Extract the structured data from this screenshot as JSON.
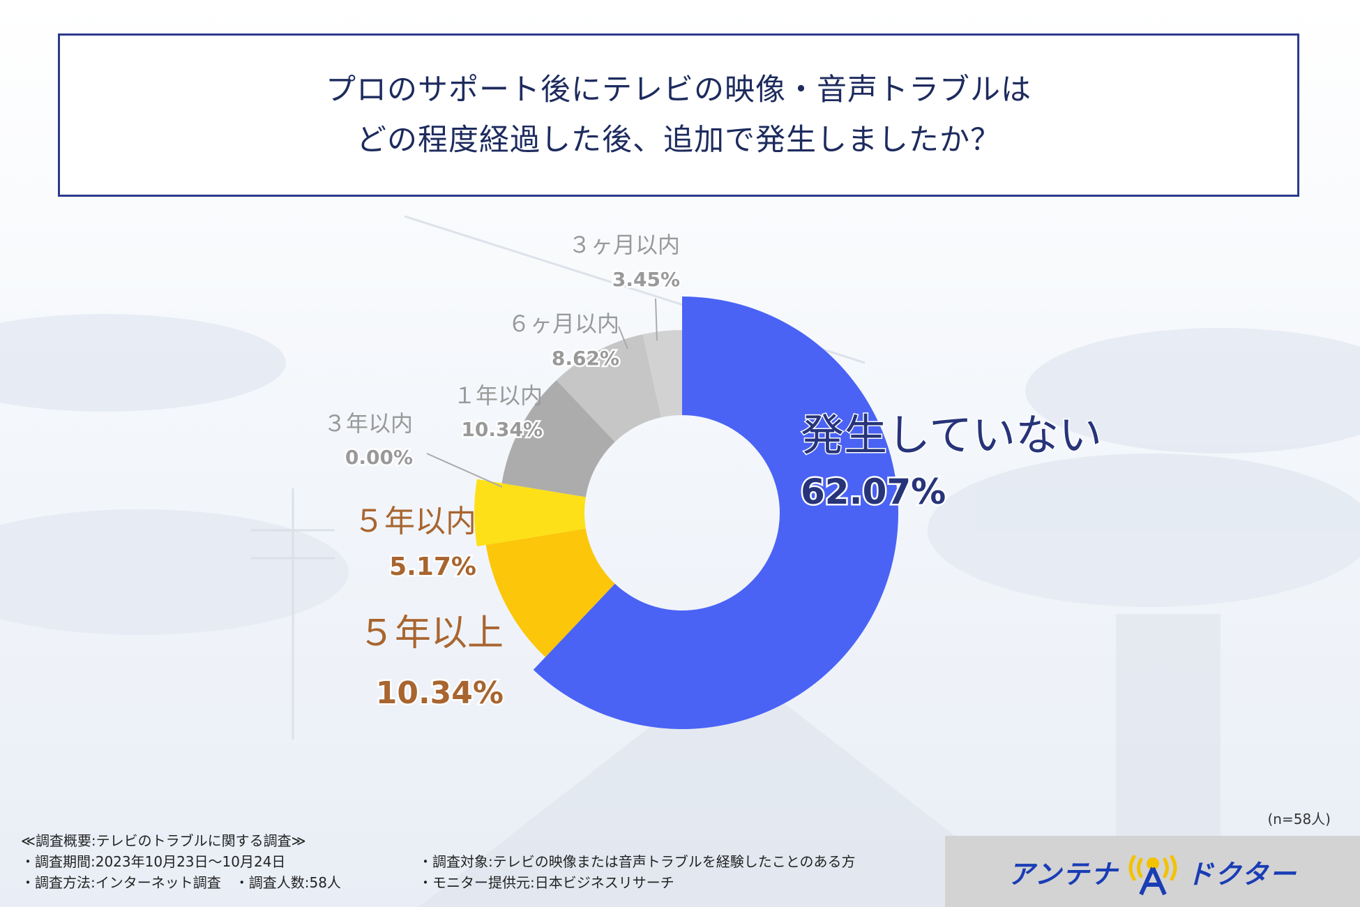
{
  "title": {
    "line1": "プロのサポート後にテレビの映像・音声トラブルは",
    "line2": "どの程度経過した後、追加で発生しましたか？"
  },
  "chart_data": {
    "type": "pie",
    "donut": true,
    "title": "プロのサポート後にテレビの映像・音声トラブルはどの程度経過した後、追加で発生しましたか？",
    "slices": [
      {
        "label": "発生していない",
        "value": 62.07,
        "value_label": "62.07%",
        "color": "#4a63f5",
        "label_color": "#27347a"
      },
      {
        "label": "５年以上",
        "value": 10.34,
        "value_label": "10.34%",
        "color": "#fcc60a",
        "label_color": "#a8652f"
      },
      {
        "label": "５年以内",
        "value": 5.17,
        "value_label": "5.17%",
        "color": "#fde018",
        "label_color": "#a8652f"
      },
      {
        "label": "３年以内",
        "value": 0.0,
        "value_label": "0.00%",
        "color": "#b9b9b9",
        "label_color": "#999999"
      },
      {
        "label": "１年以内",
        "value": 10.34,
        "value_label": "10.34%",
        "color": "#acacac",
        "label_color": "#999999"
      },
      {
        "label": "６ヶ月以内",
        "value": 8.62,
        "value_label": "8.62%",
        "color": "#c6c6c6",
        "label_color": "#999999"
      },
      {
        "label": "３ヶ月以内",
        "value": 3.45,
        "value_label": "3.45%",
        "color": "#d2d2d2",
        "label_color": "#999999"
      }
    ]
  },
  "sample_note": "(n=58人)",
  "footer": {
    "heading": "≪調査概要:テレビのトラブルに関する調査≫",
    "period": "・調査期間:2023年10月23日〜10月24日",
    "method": "・調査方法:インターネット調査　・調査人数:58人",
    "target": "・調査対象:テレビの映像または音声トラブルを経験したことのある方",
    "provider": "・モニター提供元:日本ビジネスリサーチ"
  },
  "logo": {
    "left_text": "アンテナ",
    "right_text": "ドクター"
  }
}
